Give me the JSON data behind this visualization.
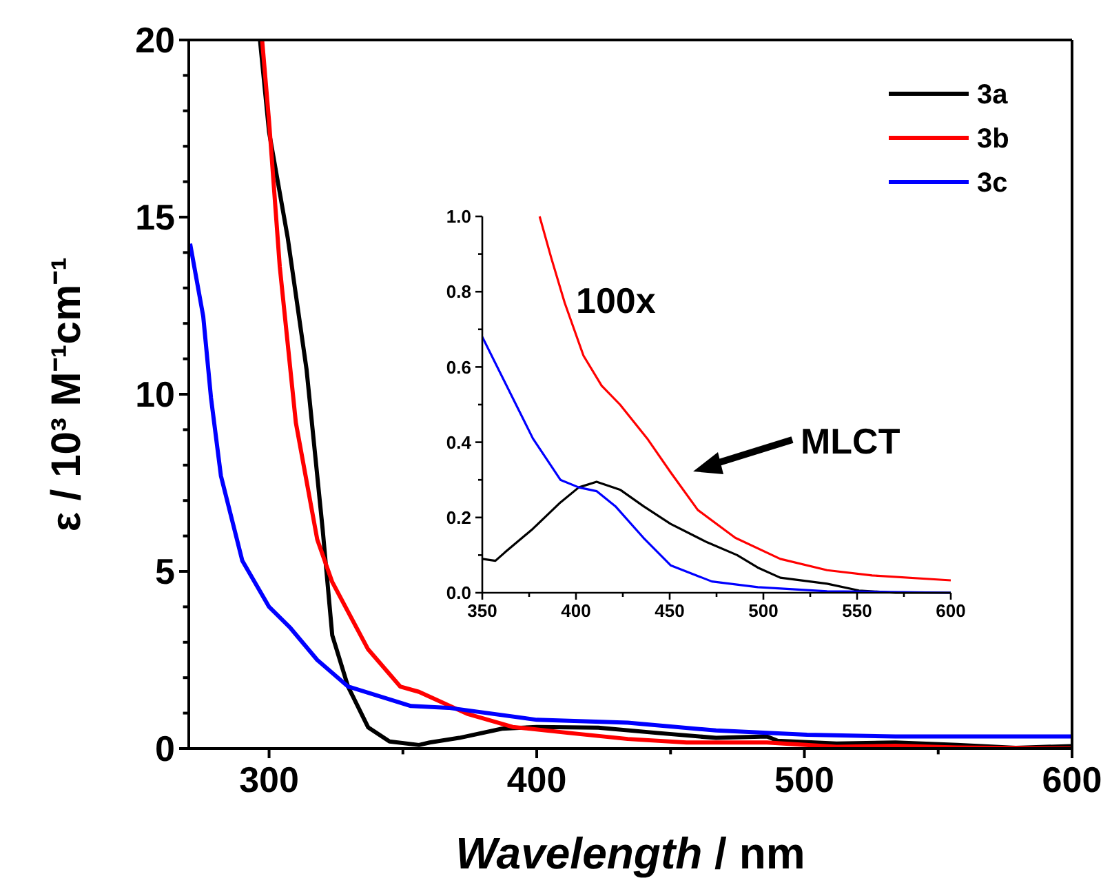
{
  "chart_data": [
    {
      "type": "line",
      "xlabel": "Wavelength / nm",
      "ylabel": "ε / 10³ M⁻¹cm⁻¹",
      "xlim": [
        270,
        600
      ],
      "ylim": [
        0,
        20
      ],
      "xticks": [
        300,
        {
          "value": 350,
          "label": null
        },
        400,
        {
          "value": 450,
          "label": null
        },
        500,
        {
          "value": 550,
          "label": null
        },
        600
      ],
      "yticks": [
        0,
        {
          "value": 1,
          "label": null
        },
        {
          "value": 2,
          "label": null
        },
        {
          "value": 3,
          "label": null
        },
        {
          "value": 4,
          "label": null
        },
        5,
        {
          "value": 6,
          "label": null
        },
        {
          "value": 7,
          "label": null
        },
        {
          "value": 8,
          "label": null
        },
        {
          "value": 9,
          "label": null
        },
        10,
        {
          "value": 11,
          "label": null
        },
        {
          "value": 12,
          "label": null
        },
        {
          "value": 13,
          "label": null
        },
        {
          "value": 14,
          "label": null
        },
        15,
        {
          "value": 16,
          "label": null
        },
        {
          "value": 17,
          "label": null
        },
        {
          "value": 18,
          "label": null
        },
        {
          "value": 19,
          "label": null
        },
        20
      ],
      "grid": false,
      "legend": "top right",
      "line_style": "solid",
      "series": [
        {
          "name": "3a",
          "color": "#000000",
          "x": [
            296.6,
            300,
            307,
            314,
            320,
            323.6,
            329.5,
            337,
            345,
            356,
            360,
            371,
            387,
            400,
            423,
            445,
            467,
            486,
            490,
            512,
            534,
            557,
            579,
            600
          ],
          "values": [
            20,
            17.4,
            14.4,
            10.7,
            6.2,
            3.2,
            1.75,
            0.6,
            0.2,
            0.1,
            0.17,
            0.3,
            0.56,
            0.61,
            0.59,
            0.44,
            0.3,
            0.34,
            0.22,
            0.14,
            0.17,
            0.1,
            0.02,
            0.07
          ]
        },
        {
          "name": "3b",
          "color": "#ff0000",
          "x": [
            297.4,
            300,
            304,
            310,
            318,
            323.6,
            337,
            349,
            356,
            374,
            391,
            412,
            434,
            456,
            486,
            512,
            534,
            557,
            600
          ],
          "values": [
            20,
            17.7,
            13.6,
            9.2,
            5.9,
            4.7,
            2.8,
            1.75,
            1.6,
            0.98,
            0.61,
            0.44,
            0.27,
            0.17,
            0.17,
            0.05,
            0.08,
            0.03,
            0
          ]
        },
        {
          "name": "3c",
          "color": "#0000ff",
          "x": [
            270.5,
            275.4,
            278.3,
            282,
            290,
            300,
            308,
            318,
            329.5,
            353,
            367,
            400,
            434,
            467,
            501,
            534,
            600
          ],
          "values": [
            14.25,
            12.2,
            9.9,
            7.7,
            5.3,
            4.0,
            3.4,
            2.5,
            1.75,
            1.2,
            1.15,
            0.81,
            0.73,
            0.51,
            0.39,
            0.34,
            0.34
          ]
        }
      ]
    },
    {
      "type": "line",
      "xlim": [
        350,
        600
      ],
      "ylim": [
        0,
        1
      ],
      "xticks": [
        350,
        {
          "value": 375,
          "label": null
        },
        400,
        {
          "value": 425,
          "label": null
        },
        450,
        {
          "value": 475,
          "label": null
        },
        500,
        {
          "value": 525,
          "label": null
        },
        550,
        {
          "value": 575,
          "label": null
        },
        600
      ],
      "yticks": [
        {
          "value": 0,
          "label": "0.0"
        },
        {
          "value": 0.1,
          "label": null
        },
        0.2,
        {
          "value": 0.3,
          "label": null
        },
        0.4,
        {
          "value": 0.5,
          "label": null
        },
        0.6,
        {
          "value": 0.7,
          "label": null
        },
        0.8,
        {
          "value": 0.9,
          "label": null
        },
        {
          "value": 1,
          "label": "1.0"
        }
      ],
      "grid": false,
      "line_style": "solid",
      "annotations": [
        "100x",
        "MLCT"
      ],
      "series": [
        {
          "color": "#000000",
          "x": [
            350,
            357,
            362,
            377,
            391.7,
            401.5,
            411,
            423.5,
            436,
            450.5,
            470,
            486,
            497,
            509,
            534,
            551,
            570.6,
            600
          ],
          "values": [
            0.09,
            0.085,
            0.107,
            0.17,
            0.24,
            0.28,
            0.295,
            0.274,
            0.23,
            0.183,
            0.134,
            0.1,
            0.067,
            0.04,
            0.024,
            0.006,
            0,
            0
          ]
        },
        {
          "color": "#ff0000",
          "x": [
            380.6,
            386.8,
            394,
            404,
            413.7,
            423.5,
            438,
            450.5,
            465,
            485,
            509,
            534,
            558,
            600
          ],
          "values": [
            1.0,
            0.89,
            0.77,
            0.63,
            0.55,
            0.5,
            0.41,
            0.32,
            0.22,
            0.146,
            0.09,
            0.06,
            0.046,
            0.033
          ]
        },
        {
          "color": "#0000ff",
          "x": [
            350,
            362,
            377,
            391.7,
            401.5,
            411,
            421,
            436,
            450.5,
            472.5,
            497,
            534,
            600
          ],
          "values": [
            0.68,
            0.56,
            0.41,
            0.3,
            0.28,
            0.27,
            0.23,
            0.146,
            0.073,
            0.03,
            0.015,
            0.004,
            0
          ]
        }
      ]
    }
  ]
}
